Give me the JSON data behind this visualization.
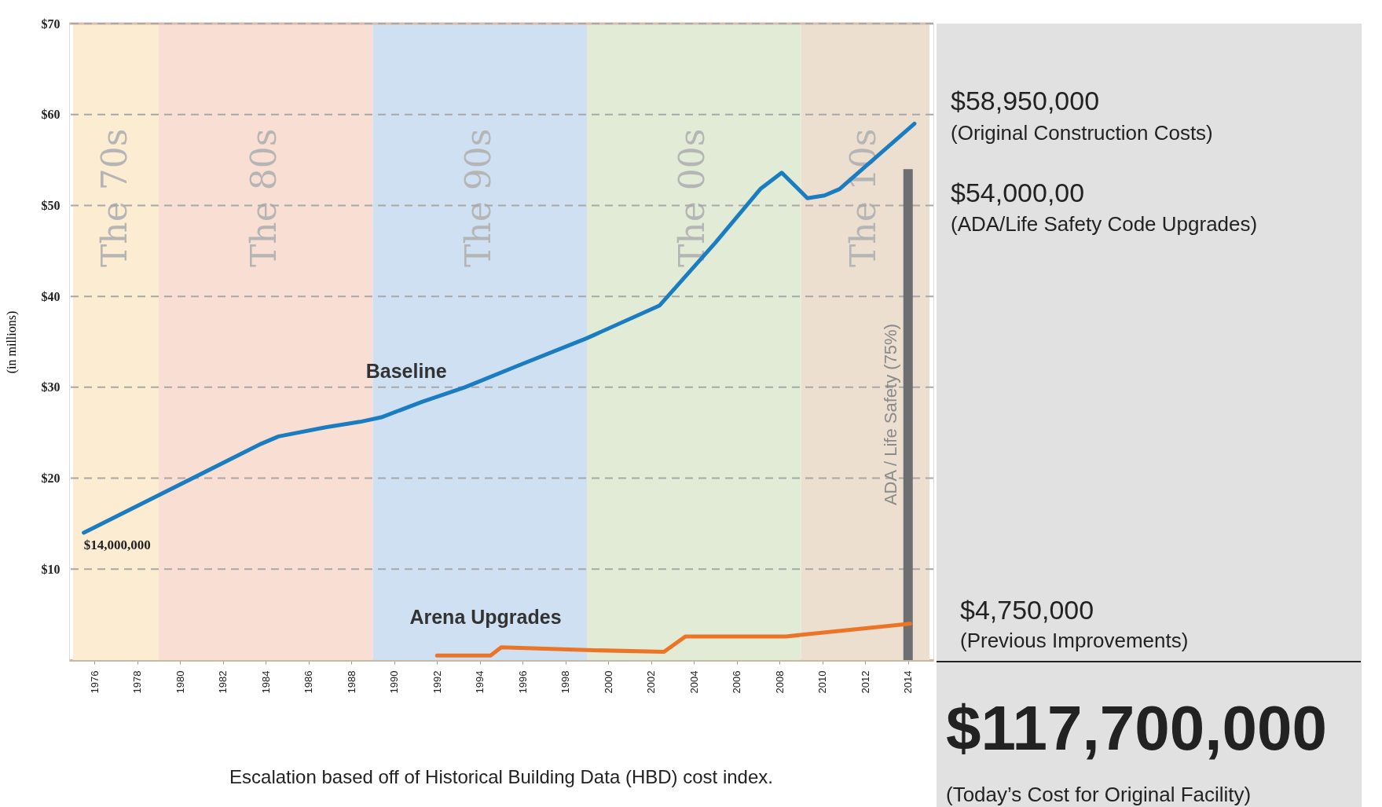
{
  "chart_data": [
    {
      "type": "line",
      "xlim": [
        1975,
        2015
      ],
      "ylim": [
        0,
        70
      ],
      "xticks": [
        1976,
        1978,
        1980,
        1982,
        1984,
        1986,
        1988,
        1990,
        1992,
        1994,
        1996,
        1998,
        2000,
        2002,
        2004,
        2006,
        2008,
        2010,
        2012,
        2014
      ],
      "yticks": [
        {
          "value": 10,
          "label": "$10"
        },
        {
          "value": 20,
          "label": "$20"
        },
        {
          "value": 30,
          "label": "$30"
        },
        {
          "value": 40,
          "label": "$40"
        },
        {
          "value": 50,
          "label": "$50"
        },
        {
          "value": 60,
          "label": "$60"
        },
        {
          "value": 70,
          "label": "$70"
        }
      ],
      "ylabel": "(in millions)",
      "grid": "y",
      "line_style": "solid",
      "bands": [
        {
          "axis": "x",
          "from": 1975,
          "to": 1979,
          "label": "The 70s",
          "color": "#fcecd2"
        },
        {
          "axis": "x",
          "from": 1979,
          "to": 1989,
          "label": "The 80s",
          "color": "#f9dfd3"
        },
        {
          "axis": "x",
          "from": 1989,
          "to": 1999,
          "label": "The 90s",
          "color": "#cfe0f2"
        },
        {
          "axis": "x",
          "from": 1999,
          "to": 2009,
          "label": "The 00s",
          "color": "#e2ebd6"
        },
        {
          "axis": "x",
          "from": 2009,
          "to": 2015,
          "label": "The 10s",
          "color": "#ecdfd0"
        }
      ],
      "series": [
        {
          "name": "Baseline",
          "color": "#1a7cc1",
          "x": [
            1975.5,
            1983.8,
            1984.6,
            1986.8,
            1988.4,
            1989.4,
            1991.3,
            1993.3,
            1995.7,
            1999,
            2002.4,
            2005,
            2007.1,
            2008.1,
            2009.3,
            2010.1,
            2010.8,
            2014.3
          ],
          "values": [
            14,
            23.8,
            24.6,
            25.6,
            26.2,
            26.7,
            28.4,
            30,
            32.3,
            35.4,
            39,
            45.9,
            51.8,
            53.6,
            50.8,
            51.1,
            51.8,
            59
          ]
        },
        {
          "name": "Arena Upgrades",
          "color": "#ec7426",
          "x": [
            1992,
            1994.5,
            1995,
            1999,
            2002.6,
            2003.6,
            2008.3,
            2014.1
          ],
          "values": [
            0.5,
            0.5,
            1.4,
            1.1,
            0.9,
            2.6,
            2.6,
            4.0
          ]
        },
        {
          "name": "ADA / Life Safety (75%)",
          "type": "bar",
          "color": "#6d6e70",
          "x": [
            2014
          ],
          "values": [
            54
          ]
        }
      ],
      "annotations": [
        {
          "text": "$14,000,000",
          "x": 1975.5,
          "y": 14
        },
        "Escalation based off of Historical Building Data (HBD) cost index."
      ]
    },
    {
      "type": "other",
      "annotations": [
        "$58,950,000",
        "(Original Construction Costs)",
        "$54,000,00",
        "(ADA/Life Safety Code Upgrades)",
        "$4,750,000",
        "(Previous Improvements)",
        "$117,700,000",
        "(Today’s Cost for Original Facility)"
      ]
    }
  ]
}
